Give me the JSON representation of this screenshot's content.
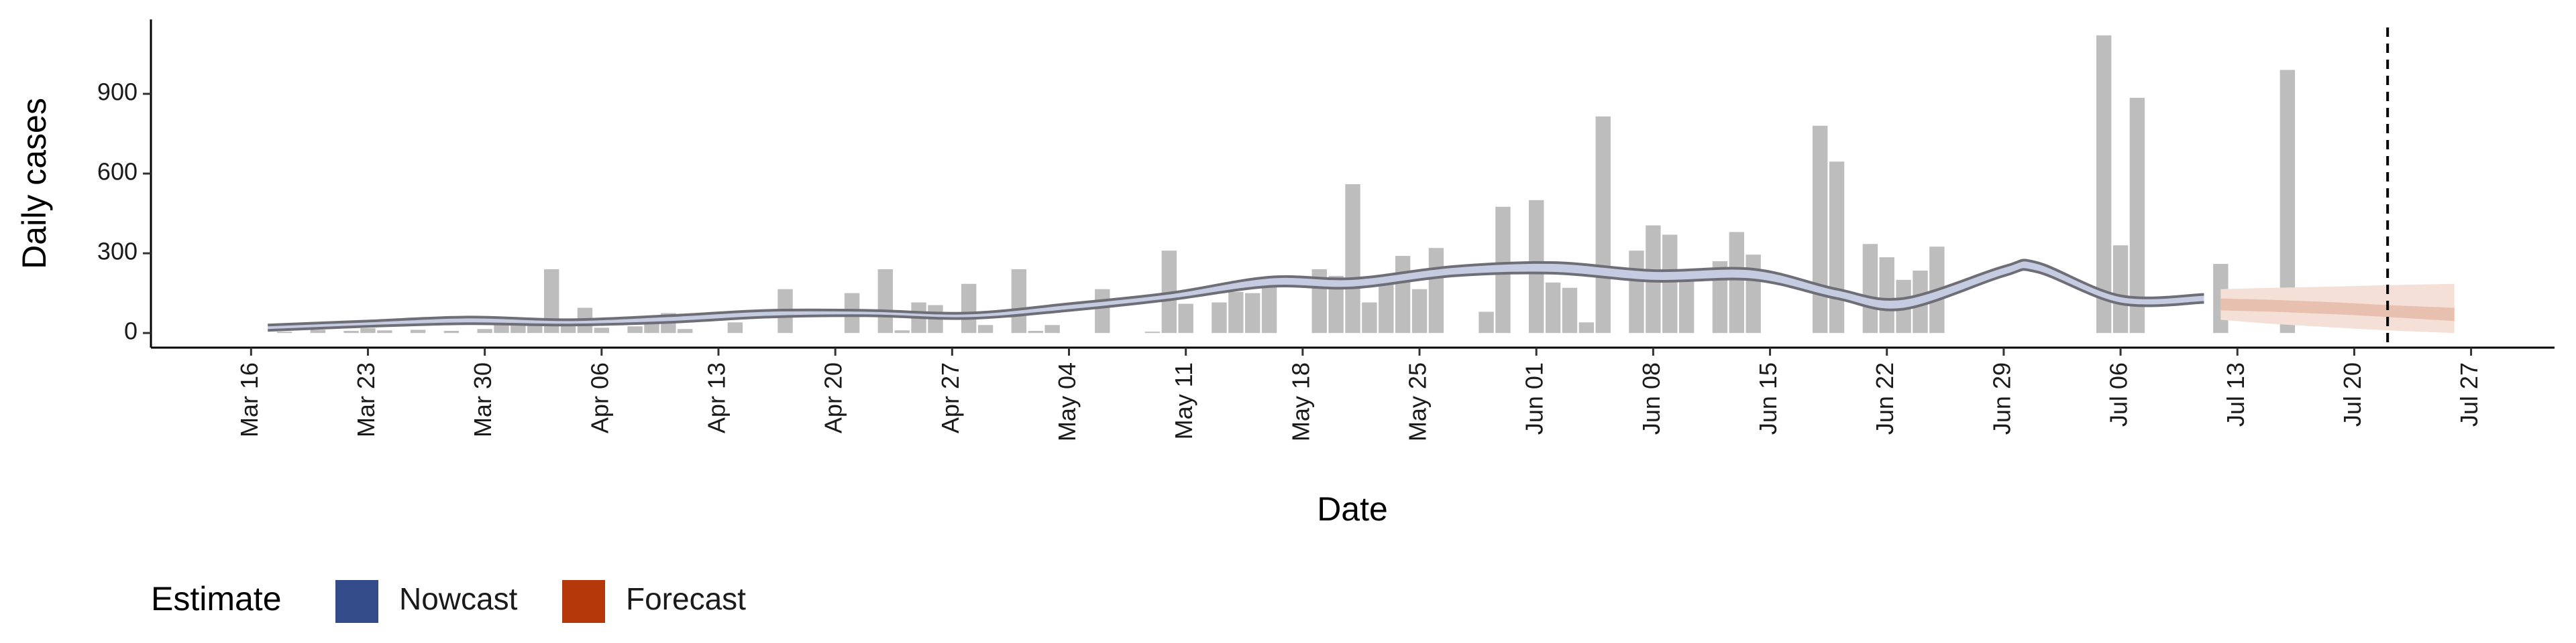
{
  "chart_data": {
    "type": "bar",
    "y_label": "Daily cases",
    "x_label": "Date",
    "ylim": [
      -55,
      1180
    ],
    "yticks": [
      0,
      300,
      600,
      900
    ],
    "xlim": [
      "Mar 10",
      "Aug 01"
    ],
    "xticks": [
      "Mar 16",
      "Mar 23",
      "Mar 30",
      "Apr 06",
      "Apr 13",
      "Apr 20",
      "Apr 27",
      "May 04",
      "May 11",
      "May 18",
      "May 25",
      "Jun 01",
      "Jun 08",
      "Jun 15",
      "Jun 22",
      "Jun 29",
      "Jul 06",
      "Jul 13",
      "Jul 20",
      "Jul 27"
    ],
    "bars": {
      "color": "#bdbdbd",
      "x": [
        "Mar 18",
        "Mar 20",
        "Mar 22",
        "Mar 23",
        "Mar 24",
        "Mar 26",
        "Mar 28",
        "Mar 30",
        "Mar 31",
        "Apr 01",
        "Apr 02",
        "Apr 03",
        "Apr 04",
        "Apr 05",
        "Apr 06",
        "Apr 08",
        "Apr 09",
        "Apr 10",
        "Apr 11",
        "Apr 14",
        "Apr 17",
        "Apr 21",
        "Apr 23",
        "Apr 24",
        "Apr 25",
        "Apr 26",
        "Apr 28",
        "Apr 29",
        "May 01",
        "May 02",
        "May 03",
        "May 06",
        "May 09",
        "May 10",
        "May 11",
        "May 13",
        "May 14",
        "May 15",
        "May 16",
        "May 19",
        "May 20",
        "May 21",
        "May 22",
        "May 23",
        "May 24",
        "May 25",
        "May 26",
        "May 29",
        "May 30",
        "Jun 01",
        "Jun 02",
        "Jun 03",
        "Jun 04",
        "Jun 05",
        "Jun 07",
        "Jun 08",
        "Jun 09",
        "Jun 10",
        "Jun 12",
        "Jun 13",
        "Jun 14",
        "Jun 18",
        "Jun 19",
        "Jun 21",
        "Jun 22",
        "Jun 23",
        "Jun 24",
        "Jun 25",
        "Jul 05",
        "Jul 06",
        "Jul 07",
        "Jul 12",
        "Jul 16"
      ],
      "values": [
        5,
        12,
        8,
        18,
        10,
        12,
        8,
        15,
        40,
        38,
        32,
        240,
        30,
        95,
        20,
        25,
        35,
        75,
        15,
        40,
        165,
        150,
        240,
        10,
        115,
        105,
        185,
        30,
        240,
        8,
        30,
        165,
        5,
        310,
        110,
        115,
        155,
        150,
        195,
        240,
        215,
        560,
        115,
        205,
        290,
        165,
        320,
        80,
        475,
        500,
        190,
        170,
        40,
        815,
        310,
        405,
        370,
        230,
        270,
        380,
        295,
        780,
        645,
        335,
        285,
        200,
        235,
        325,
        1120,
        330,
        885,
        260,
        990
      ]
    },
    "series": [
      {
        "name": "Nowcast",
        "color": "#344b8a",
        "band_color": "#c5cbe0",
        "line_color": "#6e6e76",
        "x": [
          "Mar 17",
          "Mar 23",
          "Mar 29",
          "Apr 04",
          "Apr 10",
          "Apr 16",
          "Apr 22",
          "Apr 28",
          "May 04",
          "May 10",
          "May 16",
          "May 21",
          "May 27",
          "Jun 02",
          "Jun 08",
          "Jun 14",
          "Jun 19",
          "Jun 23",
          "Jun 29",
          "Jul 01",
          "Jul 06",
          "Jul 11"
        ],
        "lower": [
          10,
          25,
          35,
          30,
          40,
          60,
          65,
          55,
          85,
          125,
          175,
          170,
          215,
          225,
          195,
          200,
          130,
          90,
          215,
          230,
          110,
          115
        ],
        "upper": [
          30,
          45,
          60,
          50,
          65,
          85,
          85,
          75,
          110,
          150,
          210,
          205,
          250,
          265,
          235,
          240,
          165,
          130,
          250,
          265,
          140,
          145
        ]
      },
      {
        "name": "Forecast",
        "color": "#b5380b",
        "band_color": "#f5e0d8",
        "inner_color": "#e8c0b0",
        "x": [
          "Jul 12",
          "Jul 15",
          "Jul 19",
          "Jul 22",
          "Jul 26"
        ],
        "lower": [
          50,
          35,
          20,
          10,
          0
        ],
        "upper": [
          165,
          170,
          175,
          180,
          185
        ],
        "lower_inner": [
          85,
          80,
          70,
          60,
          45
        ],
        "upper_inner": [
          130,
          125,
          115,
          105,
          95
        ]
      }
    ],
    "vline": "Jul 22",
    "legend_title": "Estimate",
    "legend": "bottom-left"
  }
}
